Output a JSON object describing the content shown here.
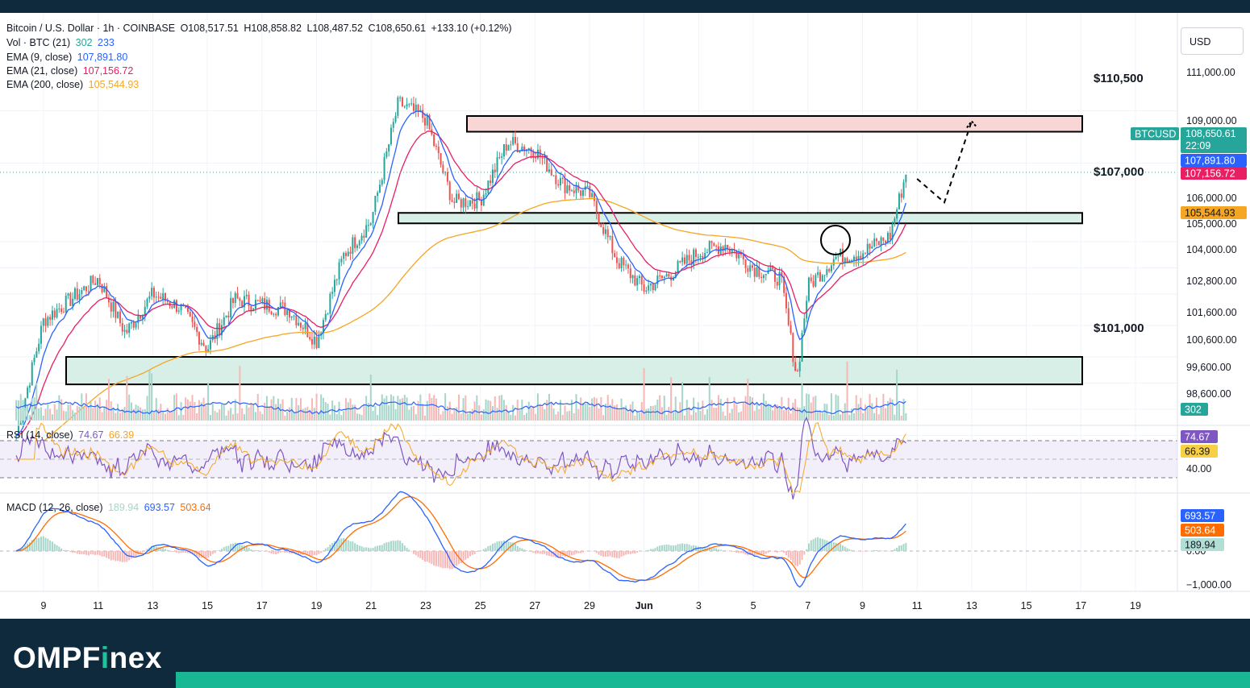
{
  "header": {
    "symbol": "Bitcoin / U.S. Dollar · 1h · COINBASE",
    "open": "O108,517.51",
    "high": "H108,858.82",
    "low": "L108,487.52",
    "close": "C108,650.61",
    "change": "+133.10 (+0.12%)"
  },
  "legend": {
    "vol_label": "Vol · BTC (21)",
    "vol_v1": "302",
    "vol_v2": "233",
    "ema9_label": "EMA (9, close)",
    "ema9_val": "107,891.80",
    "ema21_label": "EMA (21, close)",
    "ema21_val": "107,156.72",
    "ema200_label": "EMA (200, close)",
    "ema200_val": "105,544.93",
    "rsi_label": "RSI (14, close)",
    "rsi_v1": "74.67",
    "rsi_v2": "66.39",
    "macd_label": "MACD (12, 26, close)",
    "macd_v1": "189.94",
    "macd_v2": "693.57",
    "macd_v3": "503.64"
  },
  "currency_button": "USD",
  "levels": {
    "resistance": "$110,500",
    "mid": "$107,000",
    "support": "$101,000"
  },
  "badges": {
    "ticker": "BTCUSD",
    "price": "108,650.61",
    "countdown": "22:09",
    "ema9": "107,891.80",
    "ema21": "107,156.72",
    "ema200": "105,544.93",
    "vol": "302",
    "rsi1": "74.67",
    "rsi2": "66.39",
    "macd1": "693.57",
    "macd2": "503.64",
    "macd3": "189.94"
  },
  "price_axis": [
    "111,000.00",
    "109,000.00",
    "106,000.00",
    "105,000.00",
    "104,000.00",
    "102,800.00",
    "101,600.00",
    "100,600.00",
    "99,600.00",
    "98,600.00"
  ],
  "rsi_axis": [
    "40.00"
  ],
  "macd_axis": [
    "0.00",
    "−1,000.00"
  ],
  "time_axis": [
    "9",
    "11",
    "13",
    "15",
    "17",
    "19",
    "21",
    "23",
    "25",
    "27",
    "29",
    "Jun",
    "3",
    "5",
    "7",
    "9",
    "11",
    "13",
    "15",
    "17",
    "19"
  ],
  "brand": {
    "part1": "OMPF",
    "part2": "i",
    "part3": "nex"
  },
  "colors": {
    "up": "#26a69a",
    "down": "#ef5350",
    "ema9": "#2962ff",
    "ema21": "#e91e63",
    "ema200": "#f5a623",
    "rsi": "#7e57c2",
    "macd": "#2962ff",
    "signal": "#ff6d00",
    "footer": "#0f2a3d",
    "accent": "#18b894"
  },
  "chart_data": {
    "type": "candlestick",
    "title": "Bitcoin / U.S. Dollar · 1h · COINBASE",
    "x_range": [
      "May 8",
      "Jun 19"
    ],
    "ylim": [
      98000,
      112000
    ],
    "key_path_close": [
      {
        "x": "May 8",
        "y": 98600
      },
      {
        "x": "May 9",
        "y": 103000
      },
      {
        "x": "May 11",
        "y": 104600
      },
      {
        "x": "May 12",
        "y": 102500
      },
      {
        "x": "May 13",
        "y": 104000
      },
      {
        "x": "May 14",
        "y": 103500
      },
      {
        "x": "May 15",
        "y": 101900
      },
      {
        "x": "May 16",
        "y": 103800
      },
      {
        "x": "May 18",
        "y": 103400
      },
      {
        "x": "May 19",
        "y": 102200
      },
      {
        "x": "May 20",
        "y": 105500
      },
      {
        "x": "May 21",
        "y": 106800
      },
      {
        "x": "May 22",
        "y": 111300
      },
      {
        "x": "May 23",
        "y": 110700
      },
      {
        "x": "May 24",
        "y": 107500
      },
      {
        "x": "May 25",
        "y": 107600
      },
      {
        "x": "May 26",
        "y": 109800
      },
      {
        "x": "May 27",
        "y": 109500
      },
      {
        "x": "May 28",
        "y": 108200
      },
      {
        "x": "May 29",
        "y": 107800
      },
      {
        "x": "May 30",
        "y": 105300
      },
      {
        "x": "May 31",
        "y": 104200
      },
      {
        "x": "Jun 1",
        "y": 104800
      },
      {
        "x": "Jun 2",
        "y": 105600
      },
      {
        "x": "Jun 3",
        "y": 105900
      },
      {
        "x": "Jun 4",
        "y": 105000
      },
      {
        "x": "Jun 5",
        "y": 104600
      },
      {
        "x": "Jun 5.6",
        "y": 100800
      },
      {
        "x": "Jun 6",
        "y": 104300
      },
      {
        "x": "Jun 7",
        "y": 105400
      },
      {
        "x": "Jun 8",
        "y": 105600
      },
      {
        "x": "Jun 9",
        "y": 106200
      },
      {
        "x": "Jun 9.6",
        "y": 108650
      }
    ],
    "last_price": 108650.61,
    "ema": [
      {
        "name": "EMA (9, close)",
        "value": 107891.8
      },
      {
        "name": "EMA (21, close)",
        "value": 107156.72
      },
      {
        "name": "EMA (200, close)",
        "value": 105544.93
      }
    ],
    "zones": [
      {
        "label": "$110,500",
        "from": 110200,
        "to": 110800,
        "color": "#f8d0d0"
      },
      {
        "label": "$107,000",
        "from": 106700,
        "to": 107100,
        "color": "#d6ece6"
      },
      {
        "label": "$101,000",
        "from": 100550,
        "to": 101600,
        "color": "#d6ece6"
      }
    ],
    "projection": [
      {
        "x": "Jun 10",
        "y": 108400
      },
      {
        "x": "Jun 11",
        "y": 107500
      },
      {
        "x": "Jun 12",
        "y": 110600
      }
    ],
    "rsi": {
      "name": "RSI (14, close)",
      "values": [
        74.67,
        66.39
      ],
      "levels": [
        70,
        50,
        30
      ]
    },
    "macd": {
      "name": "MACD (12, 26, close)",
      "histogram": 189.94,
      "macd": 693.57,
      "signal": 503.64
    },
    "volume": {
      "name": "Vol · BTC (21)",
      "values": [
        302,
        233
      ]
    }
  }
}
